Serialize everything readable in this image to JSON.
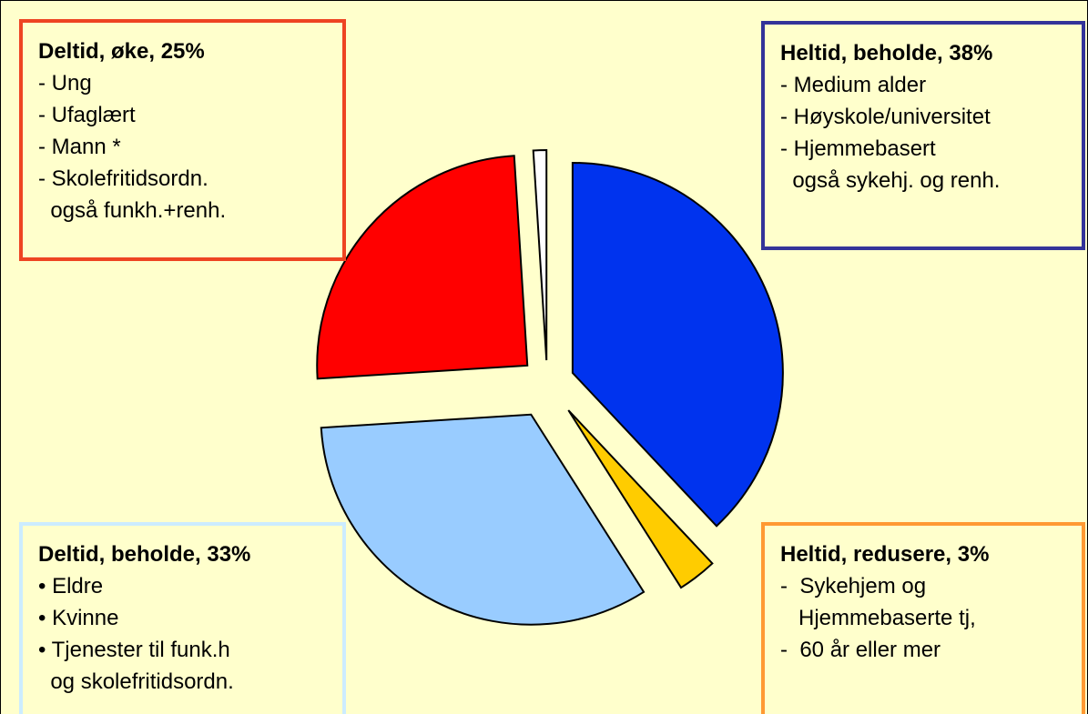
{
  "chart_data": {
    "type": "pie",
    "categories": [
      "Heltid, beholde, 38%",
      "Heltid, redusere, 3%",
      "Deltid, beholde, 33%",
      "Deltid, øke, 25%",
      null
    ],
    "values": [
      38,
      3,
      33,
      25,
      1
    ],
    "colors": [
      "#0033ee",
      "#ffcc00",
      "#99ccff",
      "#ff0000",
      "#ffffff"
    ],
    "box_colors": [
      "#333399",
      "#ff9933",
      "#ccecff",
      "#ee4422",
      null
    ],
    "notes": [
      [
        "- Medium alder",
        "- Høyskole/universitet",
        "- Hjemmebasert",
        "  også sykehj. og renh."
      ],
      [
        "-  Sykehjem og",
        "   Hjemmebaserte tj,",
        "-  60 år eller mer"
      ],
      [
        "• Eldre",
        "• Kvinne",
        "• Tjenester til funk.h",
        "  og skolefritidsordn."
      ],
      [
        "- Ung",
        "- Ufaglært",
        "- Mann *",
        "- Skolefritidsordn.",
        "  også funkh.+renh."
      ],
      null
    ]
  }
}
